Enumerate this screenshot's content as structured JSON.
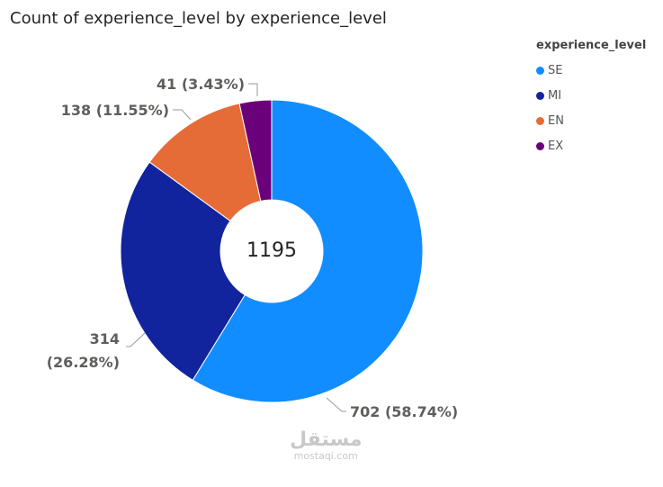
{
  "chart_data": {
    "type": "pie",
    "title": "Count of experience_level by experience_level",
    "legend_title": "experience_level",
    "legend_placement": "top-right",
    "center_total": "1195",
    "donut": true,
    "slices": [
      {
        "name": "SE",
        "value": 702,
        "label": "702 (58.74%)",
        "color": "#118DFF"
      },
      {
        "name": "MI",
        "value": 314,
        "label_line1": "314",
        "label_line2": "(26.28%)",
        "color": "#12239E"
      },
      {
        "name": "EN",
        "value": 138,
        "label": "138 (11.55%)",
        "color": "#E66C37"
      },
      {
        "name": "EX",
        "value": 41,
        "label": "41 (3.43%)",
        "color": "#6B007B"
      }
    ]
  },
  "watermark": {
    "logo": "مستقل",
    "url": "mostaqi.com"
  }
}
